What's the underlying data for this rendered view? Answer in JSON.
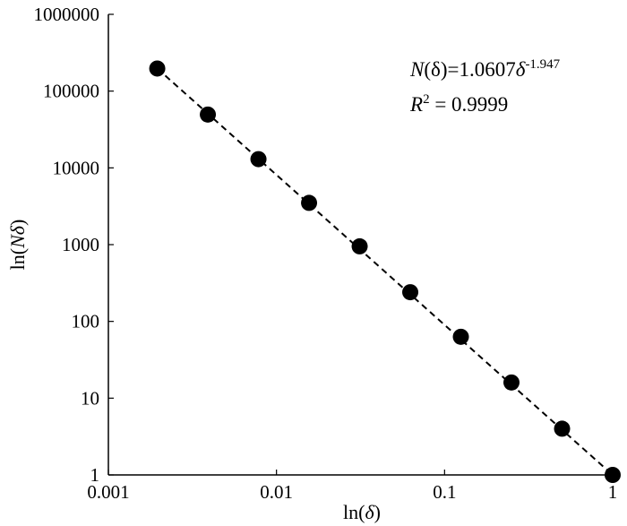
{
  "chart_data": {
    "type": "scatter",
    "x_scale": "log",
    "y_scale": "log",
    "xlim": [
      0.001,
      1
    ],
    "ylim": [
      1,
      1000000
    ],
    "x_ticks": [
      0.001,
      0.01,
      0.1,
      1
    ],
    "x_tick_labels": [
      "0.001",
      "0.01",
      "0.1",
      "1"
    ],
    "y_ticks": [
      1,
      10,
      100,
      1000,
      10000,
      100000,
      1000000
    ],
    "y_tick_labels": [
      "1",
      "10",
      "100",
      "1000",
      "10000",
      "100000",
      "1000000"
    ],
    "xlabel": {
      "prefix": "ln(",
      "symbol": "δ",
      "suffix": ")"
    },
    "ylabel": {
      "prefix": "ln(",
      "symbol": "Nδ",
      "suffix": ")"
    },
    "points": [
      {
        "x": 0.001953,
        "y": 197000
      },
      {
        "x": 0.003906,
        "y": 49500
      },
      {
        "x": 0.007813,
        "y": 13000
      },
      {
        "x": 0.015625,
        "y": 3500
      },
      {
        "x": 0.03125,
        "y": 950
      },
      {
        "x": 0.0625,
        "y": 240
      },
      {
        "x": 0.125,
        "y": 63
      },
      {
        "x": 0.25,
        "y": 16
      },
      {
        "x": 0.5,
        "y": 4
      },
      {
        "x": 1,
        "y": 1
      }
    ],
    "fit_line": {
      "style": "dashed",
      "coefficient": 1.0607,
      "exponent": -1.947
    },
    "grid": false,
    "annotation": {
      "eq_name": "N",
      "eq_paren": "(δ)",
      "eq_coef": "=1.0607",
      "eq_var": "δ",
      "eq_exp": "-1.947",
      "r2_var": "R",
      "r2_exp": "2",
      "r2_value": " = 0.9999"
    },
    "colors": {
      "markers": "#000000",
      "line": "#000000",
      "axes": "#000000"
    }
  }
}
